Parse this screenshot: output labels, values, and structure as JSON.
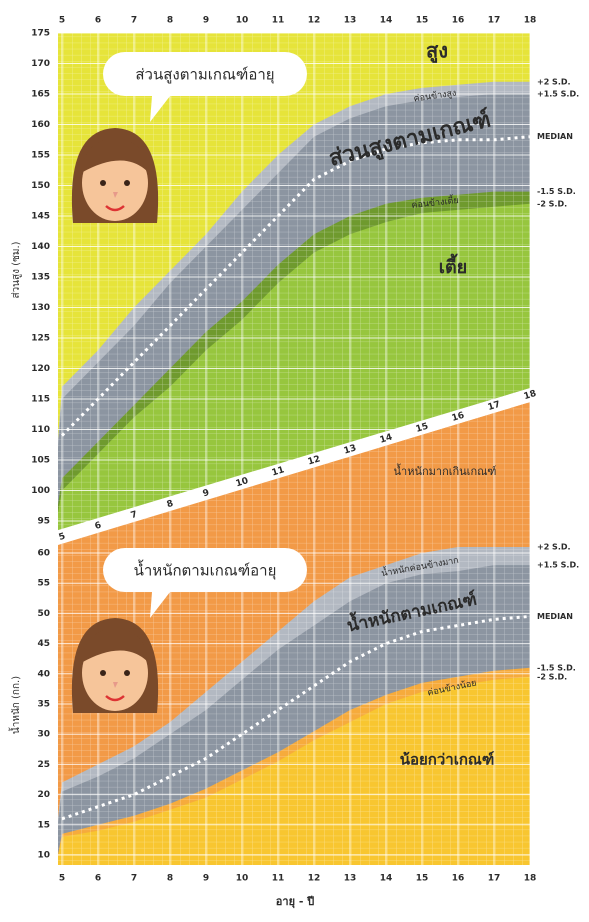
{
  "chart_data": [
    {
      "type": "line",
      "title": "ส่วนสูงตามเกณฑ์อายุ",
      "ylabel": "ส่วนสูง (ซม.)",
      "x": [
        5,
        6,
        7,
        8,
        9,
        10,
        11,
        12,
        13,
        14,
        15,
        16,
        17,
        18
      ],
      "xlim": [
        5,
        18
      ],
      "ylim": [
        95,
        175
      ],
      "yticks": [
        95,
        100,
        105,
        110,
        115,
        120,
        125,
        130,
        135,
        140,
        145,
        150,
        155,
        160,
        165,
        170,
        175
      ],
      "grid": true,
      "background": "#e6e43a",
      "series": [
        {
          "name": "+2 S.D.",
          "color": "#b3b9c2",
          "style": "area",
          "values": [
            117,
            123,
            130,
            136,
            142,
            149,
            155,
            160,
            163,
            165,
            166,
            166.5,
            167,
            167
          ]
        },
        {
          "name": "+1.5 S.D.",
          "color": "#8c95a1",
          "style": "area",
          "values": [
            115,
            121,
            127,
            134,
            140,
            146,
            152,
            158,
            161,
            163,
            164,
            164.5,
            165,
            165
          ]
        },
        {
          "name": "MEDIAN",
          "color": "#ffffff",
          "style": "dashed",
          "values": [
            109,
            115,
            121,
            127,
            133,
            139,
            145,
            151,
            154,
            156,
            157,
            157.5,
            157.5,
            158
          ]
        },
        {
          "name": "-1.5 S.D.",
          "color": "#6f9a2e",
          "style": "area",
          "values": [
            102,
            108,
            114,
            120,
            126,
            131,
            137,
            142,
            145,
            147,
            148,
            148.5,
            149,
            149
          ]
        },
        {
          "name": "-2 S.D.",
          "color": "#97c63e",
          "style": "area",
          "values": [
            100,
            106,
            112,
            117,
            123,
            128,
            134,
            139,
            142,
            144,
            145.5,
            146,
            146.5,
            147
          ]
        }
      ],
      "annotations": [
        "สูง",
        "ค่อนข้างสูง",
        "ส่วนสูงตามเกณฑ์",
        "ค่อนข้างเตี้ย",
        "เตี้ย"
      ]
    },
    {
      "type": "line",
      "title": "น้ำหนักตามเกณฑ์อายุ",
      "ylabel": "น้ำหนัก (กก.)",
      "xlabel": "อายุ - ปี",
      "x": [
        5,
        6,
        7,
        8,
        9,
        10,
        11,
        12,
        13,
        14,
        15,
        16,
        17,
        18
      ],
      "xlim": [
        5,
        18
      ],
      "ylim": [
        10,
        60
      ],
      "yticks": [
        10,
        15,
        20,
        25,
        30,
        35,
        40,
        45,
        50,
        55,
        60
      ],
      "grid": true,
      "background": "#f29a47",
      "series": [
        {
          "name": "+2 S.D.",
          "color": "#b3b9c2",
          "style": "area",
          "values": [
            22,
            25,
            28,
            32,
            37,
            42,
            47,
            52,
            56,
            58,
            60,
            61,
            61,
            61
          ]
        },
        {
          "name": "+1.5 S.D.",
          "color": "#8c95a1",
          "style": "area",
          "values": [
            20.5,
            23,
            26,
            30,
            34,
            39,
            44,
            48,
            52,
            55,
            56.5,
            57,
            58,
            58
          ]
        },
        {
          "name": "MEDIAN",
          "color": "#ffffff",
          "style": "dashed",
          "values": [
            16,
            18,
            20,
            23,
            26,
            30,
            34,
            38,
            42,
            45,
            47,
            48,
            49,
            49.5
          ]
        },
        {
          "name": "-1.5 S.D.",
          "color": "#f6ab3c",
          "style": "area",
          "values": [
            13.5,
            15,
            16.5,
            18.5,
            21,
            24,
            27,
            30.5,
            34,
            36.5,
            38.5,
            39.5,
            40.5,
            41
          ]
        },
        {
          "name": "-2 S.D.",
          "color": "#f8c630",
          "style": "area",
          "values": [
            13,
            14,
            15.5,
            17.5,
            19.5,
            22.5,
            25.5,
            29,
            32,
            35,
            37,
            38,
            39,
            39.5
          ]
        }
      ],
      "annotations": [
        "น้ำหนักมากเกินเกณฑ์",
        "น้ำหนักค่อนข้างมาก",
        "น้ำหนักตามเกณฑ์",
        "ค่อนข้างน้อย",
        "น้อยกว่าเกณฑ์"
      ]
    }
  ]
}
